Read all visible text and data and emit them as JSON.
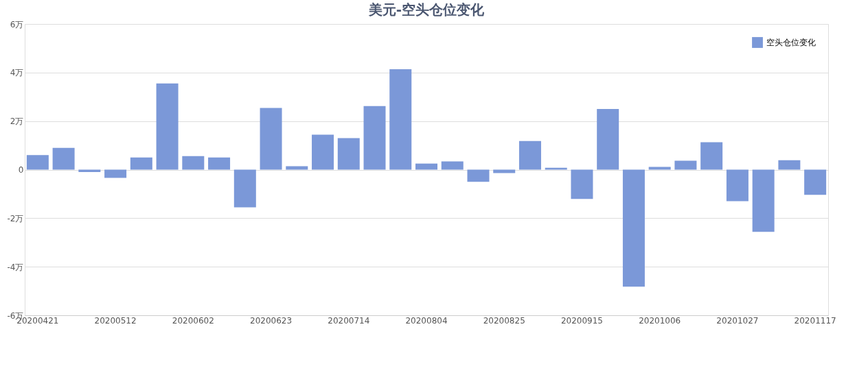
{
  "chart_data": {
    "type": "bar",
    "title": "美元-空头仓位变化",
    "categories": [
      "20200421",
      null,
      null,
      "20200512",
      null,
      null,
      "20200602",
      null,
      null,
      "20200623",
      null,
      null,
      "20200714",
      null,
      null,
      "20200804",
      null,
      null,
      "20200825",
      null,
      null,
      "20200915",
      null,
      null,
      "20201006",
      null,
      null,
      "20201027",
      null,
      null,
      "20201117"
    ],
    "series": [
      {
        "name": "空头仓位变化",
        "color": "#7b98d8",
        "values": [
          0.6,
          0.9,
          -0.1,
          -0.34,
          0.5,
          3.55,
          0.56,
          0.5,
          -1.55,
          2.54,
          0.14,
          1.44,
          1.3,
          2.62,
          4.14,
          0.25,
          0.34,
          -0.5,
          -0.14,
          1.18,
          0.08,
          -1.21,
          2.5,
          -4.82,
          0.11,
          0.37,
          1.13,
          -1.3,
          -2.56,
          0.39,
          -1.04
        ]
      }
    ],
    "ylim": [
      -6,
      6
    ],
    "yticks": [
      {
        "value": -6,
        "label": "-6万"
      },
      {
        "value": -4,
        "label": "-4万"
      },
      {
        "value": -2,
        "label": "-2万"
      },
      0,
      {
        "value": 2,
        "label": "2万"
      },
      {
        "value": 4,
        "label": "4万"
      },
      {
        "value": 6,
        "label": "6万"
      }
    ],
    "grid": "y",
    "legend": "top right"
  }
}
